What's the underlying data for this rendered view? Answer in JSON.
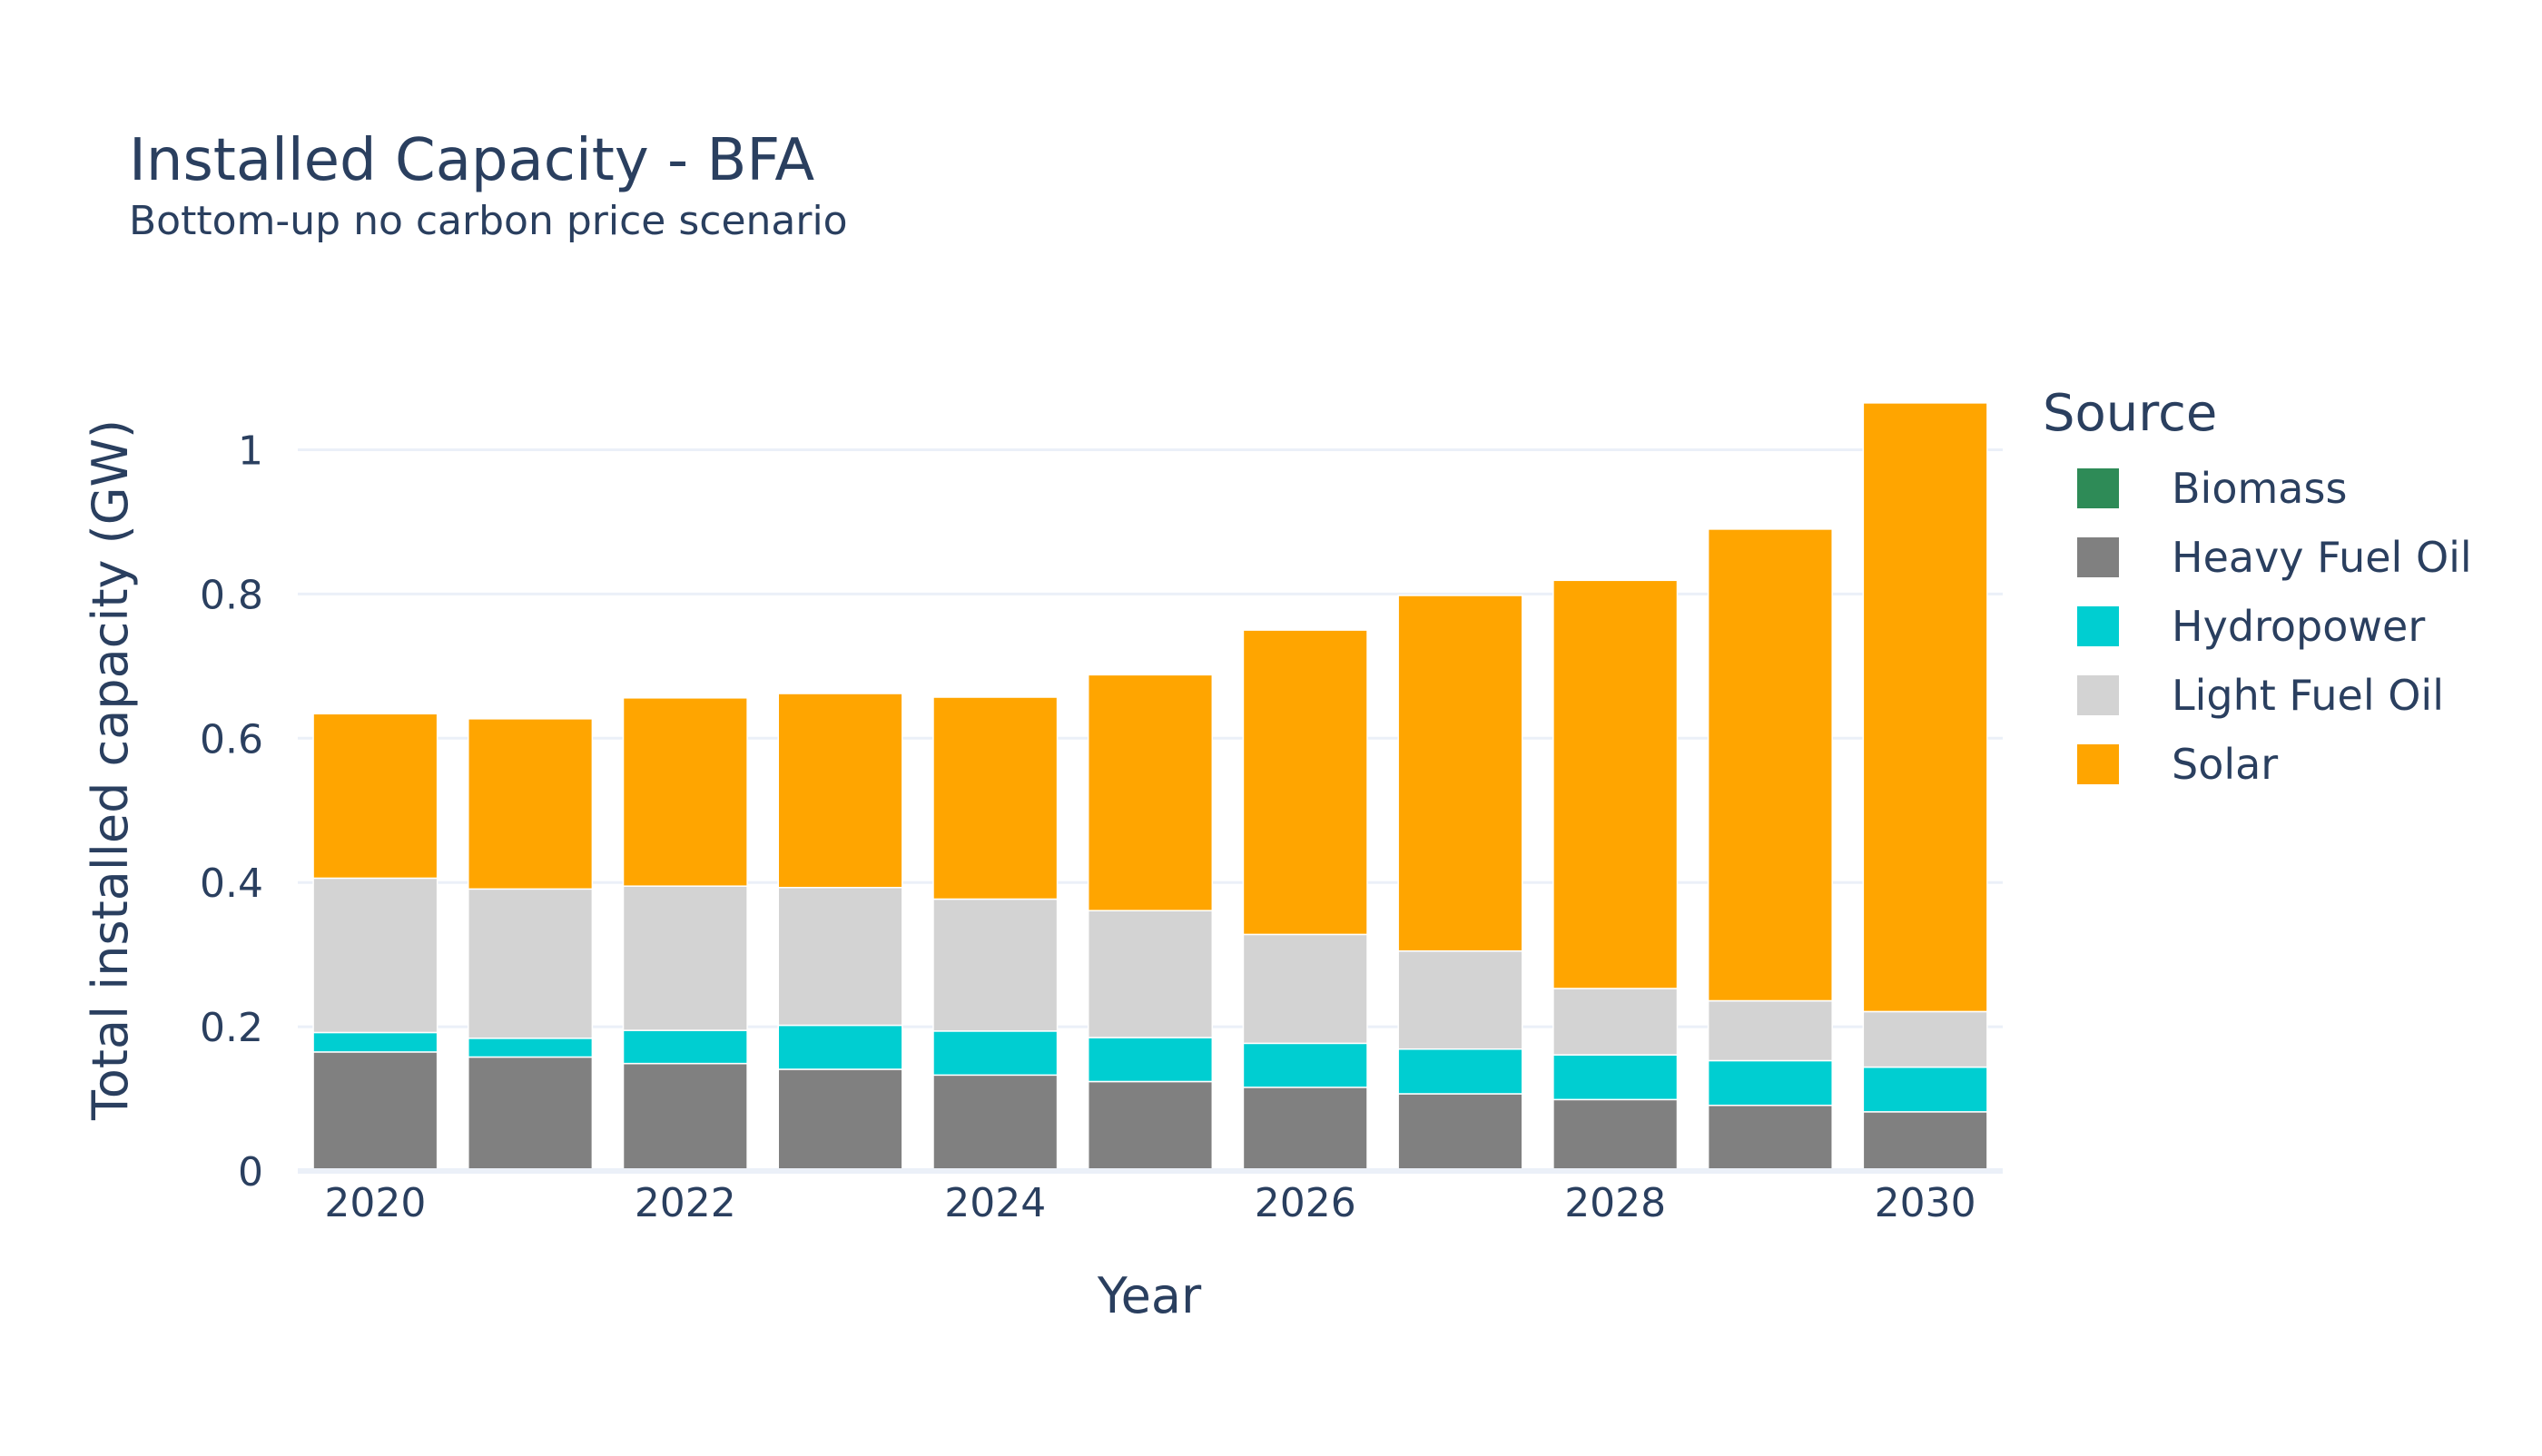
{
  "chart_data": {
    "type": "bar",
    "barmode": "stack",
    "title": "Installed Capacity - BFA",
    "subtitle": "Bottom-up no carbon price scenario",
    "xlabel": "Year",
    "ylabel": "Total installed capacity (GW)",
    "ylim": [
      0,
      1.09
    ],
    "yticks": [
      0,
      0.2,
      0.4,
      0.6,
      0.8,
      1
    ],
    "ytick_labels": [
      "0",
      "0.2",
      "0.4",
      "0.6",
      "0.8",
      "1"
    ],
    "xticks": [
      2020,
      2022,
      2024,
      2026,
      2028,
      2030
    ],
    "xtick_labels": [
      "2020",
      "2022",
      "2024",
      "2026",
      "2028",
      "2030"
    ],
    "grid": true,
    "legend_title": "Source",
    "legend_position": "right",
    "categories": [
      2020,
      2021,
      2022,
      2023,
      2024,
      2025,
      2026,
      2027,
      2028,
      2029,
      2030
    ],
    "series": [
      {
        "name": "Biomass",
        "color": "#2e8b57",
        "values": [
          0,
          0,
          0,
          0,
          0,
          0,
          0,
          0,
          0,
          0,
          0
        ]
      },
      {
        "name": "Heavy Fuel Oil",
        "color": "#808080",
        "values": [
          0.165,
          0.158,
          0.149,
          0.141,
          0.133,
          0.124,
          0.116,
          0.107,
          0.099,
          0.091,
          0.082
        ]
      },
      {
        "name": "Hydropower",
        "color": "#00ced1",
        "values": [
          0.027,
          0.026,
          0.046,
          0.061,
          0.061,
          0.061,
          0.061,
          0.062,
          0.062,
          0.062,
          0.062
        ]
      },
      {
        "name": "Light Fuel Oil",
        "color": "#d3d3d3",
        "values": [
          0.214,
          0.207,
          0.2,
          0.191,
          0.183,
          0.176,
          0.151,
          0.136,
          0.092,
          0.083,
          0.077
        ]
      },
      {
        "name": "Solar",
        "color": "#ffa500",
        "values": [
          0.228,
          0.236,
          0.261,
          0.269,
          0.28,
          0.327,
          0.422,
          0.493,
          0.566,
          0.654,
          0.844
        ]
      }
    ]
  }
}
